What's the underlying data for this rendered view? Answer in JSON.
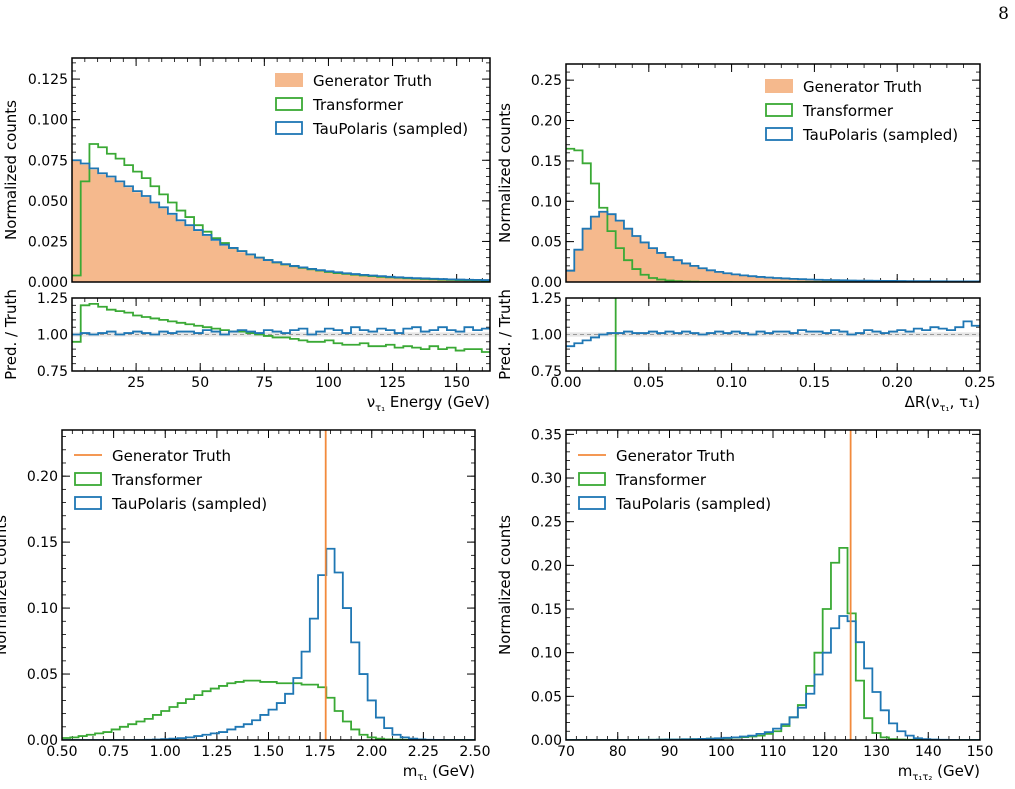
{
  "page_number": "8",
  "colors": {
    "truth_fill": "#f5b98d",
    "truth_line": "#f28a3c",
    "transformer": "#3aa935",
    "taupolaris": "#1f77b4",
    "unity": "#999999"
  },
  "chart_data": [
    {
      "id": "nu-energy",
      "type": "histogram-step",
      "title": "",
      "xlabel_main": "ν",
      "xlabel_sub": "τ₁",
      "xlabel_rest": " Energy (GeV)",
      "ylabel": "Normalized counts",
      "xlim": [
        0,
        163
      ],
      "ylim": [
        0,
        0.138
      ],
      "xticks": [
        25,
        50,
        75,
        100,
        125,
        150
      ],
      "xtick_labels": [
        "25",
        "50",
        "75",
        "100",
        "125",
        "150"
      ],
      "yticks": [
        0,
        0.025,
        0.05,
        0.075,
        0.1,
        0.125
      ],
      "ytick_labels": [
        "0.000",
        "0.025",
        "0.050",
        "0.075",
        "0.100",
        "0.125"
      ],
      "legend_position": "top-right",
      "legend": [
        "Generator Truth",
        "Transformer",
        "TauPolaris (sampled)"
      ],
      "bins": {
        "start": 0,
        "width": 3.4
      },
      "series": [
        {
          "name": "Generator Truth",
          "style": "filled",
          "values": [
            0.075,
            0.072,
            0.069,
            0.066,
            0.064,
            0.061,
            0.058,
            0.055,
            0.052,
            0.048,
            0.045,
            0.041,
            0.037,
            0.034,
            0.031,
            0.028,
            0.025,
            0.022,
            0.02,
            0.018,
            0.016,
            0.0145,
            0.013,
            0.0118,
            0.0106,
            0.0096,
            0.0087,
            0.0078,
            0.007,
            0.0063,
            0.0057,
            0.0052,
            0.0047,
            0.0042,
            0.0038,
            0.0034,
            0.0031,
            0.0028,
            0.0025,
            0.0023,
            0.0021,
            0.0019,
            0.0017,
            0.0015,
            0.0014,
            0.0013,
            0.0012,
            0.0011
          ]
        },
        {
          "name": "Transformer",
          "style": "step",
          "values": [
            0.004,
            0.062,
            0.085,
            0.083,
            0.079,
            0.076,
            0.072,
            0.068,
            0.064,
            0.059,
            0.054,
            0.049,
            0.044,
            0.04,
            0.035,
            0.031,
            0.027,
            0.024,
            0.021,
            0.019,
            0.017,
            0.015,
            0.0135,
            0.012,
            0.0108,
            0.0097,
            0.0087,
            0.0078,
            0.007,
            0.0062,
            0.0055,
            0.005,
            0.0045,
            0.004,
            0.0036,
            0.0032,
            0.0029,
            0.0026,
            0.0023,
            0.0021,
            0.0019,
            0.0017,
            0.0015,
            0.0013,
            0.0012,
            0.0011,
            0.001,
            0.0009
          ]
        },
        {
          "name": "TauPolaris (sampled)",
          "style": "step",
          "values": [
            0.075,
            0.073,
            0.07,
            0.067,
            0.065,
            0.062,
            0.059,
            0.056,
            0.053,
            0.049,
            0.046,
            0.042,
            0.038,
            0.035,
            0.032,
            0.029,
            0.026,
            0.023,
            0.021,
            0.019,
            0.017,
            0.015,
            0.0135,
            0.0122,
            0.011,
            0.0099,
            0.009,
            0.0081,
            0.0073,
            0.0066,
            0.006,
            0.0054,
            0.0049,
            0.0044,
            0.004,
            0.0036,
            0.0032,
            0.0029,
            0.0026,
            0.0024,
            0.0022,
            0.002,
            0.0018,
            0.0016,
            0.0015,
            0.0014,
            0.0013,
            0.0012
          ]
        }
      ],
      "ratio": {
        "ylabel": "Pred. / Truth",
        "ylim": [
          0.75,
          1.25
        ],
        "yticks": [
          0.75,
          1.0,
          1.25
        ],
        "ytick_labels": [
          "0.75",
          "1.00",
          "1.25"
        ],
        "series": [
          {
            "name": "Transformer",
            "values": [
              0.95,
              1.2,
              1.21,
              1.19,
              1.17,
              1.16,
              1.15,
              1.13,
              1.12,
              1.11,
              1.1,
              1.09,
              1.08,
              1.07,
              1.06,
              1.05,
              1.04,
              1.03,
              1.02,
              1.02,
              1.01,
              1.0,
              0.99,
              0.98,
              0.98,
              0.97,
              0.96,
              0.95,
              0.95,
              0.96,
              0.94,
              0.93,
              0.93,
              0.94,
              0.92,
              0.92,
              0.93,
              0.91,
              0.92,
              0.91,
              0.9,
              0.92,
              0.9,
              0.91,
              0.89,
              0.9,
              0.9,
              0.88
            ]
          },
          {
            "name": "TauPolaris (sampled)",
            "values": [
              1.0,
              1.01,
              1.0,
              1.01,
              1.02,
              1.0,
              1.01,
              1.02,
              1.01,
              1.0,
              1.02,
              1.01,
              1.02,
              1.02,
              1.01,
              1.03,
              1.02,
              1.0,
              1.02,
              1.03,
              1.02,
              1.01,
              1.03,
              1.02,
              1.01,
              1.03,
              1.04,
              1.0,
              1.02,
              1.04,
              1.03,
              1.01,
              1.05,
              1.03,
              1.02,
              1.04,
              1.03,
              1.01,
              1.04,
              1.05,
              1.02,
              1.03,
              1.05,
              1.03,
              1.02,
              1.05,
              1.03,
              1.04
            ]
          }
        ]
      }
    },
    {
      "id": "delta-r",
      "type": "histogram-step",
      "title": "",
      "xlabel_main": "ΔR(ν",
      "xlabel_sub": "τ₁",
      "xlabel_rest": ", τ₁)",
      "ylabel": "Normalized counts",
      "xlim": [
        0,
        0.25
      ],
      "ylim": [
        0,
        0.27
      ],
      "xticks": [
        0,
        0.05,
        0.1,
        0.15,
        0.2,
        0.25
      ],
      "xtick_labels": [
        "0.00",
        "0.05",
        "0.10",
        "0.15",
        "0.20",
        "0.25"
      ],
      "yticks": [
        0,
        0.05,
        0.1,
        0.15,
        0.2,
        0.25
      ],
      "ytick_labels": [
        "0.00",
        "0.05",
        "0.10",
        "0.15",
        "0.20",
        "0.25"
      ],
      "legend_position": "top-right",
      "legend": [
        "Generator Truth",
        "Transformer",
        "TauPolaris (sampled)"
      ],
      "bins": {
        "start": 0,
        "width": 0.005
      },
      "series": [
        {
          "name": "Generator Truth",
          "style": "filled",
          "values": [
            0.015,
            0.04,
            0.065,
            0.08,
            0.086,
            0.083,
            0.075,
            0.065,
            0.056,
            0.048,
            0.041,
            0.035,
            0.03,
            0.026,
            0.022,
            0.019,
            0.016,
            0.014,
            0.012,
            0.0105,
            0.0092,
            0.008,
            0.007,
            0.0062,
            0.0055,
            0.0048,
            0.0043,
            0.0038,
            0.0034,
            0.003,
            0.0027,
            0.0024,
            0.0022,
            0.002,
            0.0018,
            0.0016,
            0.0015,
            0.0014,
            0.0013,
            0.0012,
            0.0011,
            0.001,
            0.0009,
            0.0009,
            0.0008,
            0.0008,
            0.0007,
            0.0007,
            0.0006,
            0.0006
          ]
        },
        {
          "name": "Transformer",
          "style": "step",
          "values": [
            0.165,
            0.163,
            0.147,
            0.122,
            0.092,
            0.063,
            0.042,
            0.027,
            0.016,
            0.009,
            0.005,
            0.003,
            0.0018,
            0.001,
            0.0006,
            0.0004,
            0.0002,
            0.0001,
            0.0001,
            0.0001,
            0,
            0,
            0,
            0,
            0,
            0,
            0,
            0,
            0,
            0,
            0,
            0,
            0,
            0,
            0,
            0,
            0,
            0,
            0,
            0,
            0,
            0,
            0,
            0,
            0,
            0,
            0,
            0,
            0,
            0
          ]
        },
        {
          "name": "TauPolaris (sampled)",
          "style": "step",
          "values": [
            0.014,
            0.04,
            0.066,
            0.081,
            0.087,
            0.084,
            0.076,
            0.066,
            0.057,
            0.049,
            0.042,
            0.036,
            0.031,
            0.027,
            0.023,
            0.02,
            0.017,
            0.0145,
            0.0125,
            0.0108,
            0.0094,
            0.0082,
            0.0072,
            0.0063,
            0.0056,
            0.005,
            0.0044,
            0.0039,
            0.0035,
            0.0031,
            0.0028,
            0.0025,
            0.0023,
            0.0021,
            0.0019,
            0.0017,
            0.0016,
            0.0015,
            0.0014,
            0.0013,
            0.0012,
            0.0011,
            0.001,
            0.001,
            0.0009,
            0.0009,
            0.0008,
            0.0008,
            0.0007,
            0.0007
          ]
        }
      ],
      "ratio": {
        "ylabel": "Pred. / Truth",
        "ylim": [
          0.75,
          1.25
        ],
        "yticks": [
          0.75,
          1.0,
          1.25
        ],
        "ytick_labels": [
          "0.75",
          "1.00",
          "1.25"
        ],
        "series": [
          {
            "name": "Transformer",
            "values": [
              2.5,
              2.5,
              2.5,
              2.5,
              2.0,
              1.3,
              0.55,
              0.4,
              0.3,
              0.2,
              0.1,
              0.1,
              0.1,
              0.1,
              0.1,
              0.1,
              0.1,
              0.1,
              0.1,
              0.1,
              0.1,
              0.1,
              0.1,
              0.1,
              0.1,
              0.1,
              0.1,
              0.1,
              0.1,
              0.1,
              0.1,
              0.1,
              0.1,
              0.1,
              0.1,
              0.1,
              0.1,
              0.1,
              0.1,
              0.1,
              0.1,
              0.1,
              0.1,
              0.1,
              0.1,
              0.1,
              0.1,
              0.1,
              0.1,
              0.1
            ]
          },
          {
            "name": "TauPolaris (sampled)",
            "values": [
              0.92,
              0.94,
              0.96,
              0.98,
              1.0,
              1.01,
              1.01,
              1.02,
              1.01,
              1.01,
              1.02,
              1.01,
              1.02,
              1.01,
              1.02,
              1.01,
              1.0,
              1.01,
              1.02,
              1.01,
              1.02,
              1.01,
              1.0,
              1.02,
              1.01,
              1.02,
              1.02,
              1.01,
              1.03,
              1.02,
              1.02,
              1.01,
              1.03,
              1.02,
              1.0,
              1.01,
              1.03,
              1.02,
              1.01,
              1.02,
              1.03,
              1.02,
              1.04,
              1.03,
              1.05,
              1.04,
              1.03,
              1.05,
              1.09,
              1.06
            ]
          }
        ]
      }
    },
    {
      "id": "tau-mass",
      "type": "histogram-step",
      "title": "",
      "xlabel_main": "m",
      "xlabel_sub": "τ₁",
      "xlabel_rest": " (GeV)",
      "ylabel": "Normalized counts",
      "xlim": [
        0.5,
        2.5
      ],
      "ylim": [
        0,
        0.235
      ],
      "xticks": [
        0.5,
        0.75,
        1.0,
        1.25,
        1.5,
        1.75,
        2.0,
        2.25,
        2.5
      ],
      "xtick_labels": [
        "0.50",
        "0.75",
        "1.00",
        "1.25",
        "1.50",
        "1.75",
        "2.00",
        "2.25",
        "2.50"
      ],
      "yticks": [
        0,
        0.05,
        0.1,
        0.15,
        0.2
      ],
      "ytick_labels": [
        "0.00",
        "0.05",
        "0.10",
        "0.15",
        "0.20"
      ],
      "legend_position": "top-left",
      "legend": [
        "Generator Truth",
        "Transformer",
        "TauPolaris (sampled)"
      ],
      "truth_line_x": 1.777,
      "bins": {
        "start": 0.5,
        "width": 0.04
      },
      "series": [
        {
          "name": "Transformer",
          "style": "step",
          "values": [
            0.0015,
            0.002,
            0.003,
            0.004,
            0.005,
            0.006,
            0.008,
            0.01,
            0.012,
            0.014,
            0.016,
            0.019,
            0.022,
            0.025,
            0.028,
            0.031,
            0.034,
            0.037,
            0.039,
            0.041,
            0.043,
            0.044,
            0.045,
            0.045,
            0.044,
            0.044,
            0.043,
            0.043,
            0.043,
            0.042,
            0.042,
            0.04,
            0.032,
            0.022,
            0.014,
            0.008,
            0.004,
            0.002,
            0.001,
            0.0005,
            0.0003,
            0.0002,
            0.0001,
            0.0001,
            0.0001,
            0,
            0,
            0,
            0,
            0
          ]
        },
        {
          "name": "TauPolaris (sampled)",
          "style": "step",
          "values": [
            0,
            0,
            0,
            0,
            0,
            0,
            0,
            0,
            0,
            0,
            0.0002,
            0.0004,
            0.0006,
            0.001,
            0.0014,
            0.002,
            0.003,
            0.004,
            0.005,
            0.006,
            0.008,
            0.01,
            0.012,
            0.015,
            0.019,
            0.023,
            0.028,
            0.035,
            0.047,
            0.067,
            0.092,
            0.125,
            0.145,
            0.127,
            0.1,
            0.074,
            0.05,
            0.03,
            0.017,
            0.009,
            0.004,
            0.002,
            0.001,
            0.0005,
            0.0002,
            0.0001,
            0,
            0,
            0,
            0
          ]
        }
      ]
    },
    {
      "id": "ditau-mass",
      "type": "histogram-step",
      "title": "",
      "xlabel_main": "m",
      "xlabel_sub": "τ₁τ₂",
      "xlabel_rest": " (GeV)",
      "ylabel": "Normalized counts",
      "xlim": [
        70,
        150
      ],
      "ylim": [
        0,
        0.355
      ],
      "xticks": [
        70,
        80,
        90,
        100,
        110,
        120,
        130,
        140,
        150
      ],
      "xtick_labels": [
        "70",
        "80",
        "90",
        "100",
        "110",
        "120",
        "130",
        "140",
        "150"
      ],
      "yticks": [
        0,
        0.05,
        0.1,
        0.15,
        0.2,
        0.25,
        0.3,
        0.35
      ],
      "ytick_labels": [
        "0.00",
        "0.05",
        "0.10",
        "0.15",
        "0.20",
        "0.25",
        "0.30",
        "0.35"
      ],
      "legend_position": "top-left",
      "legend": [
        "Generator Truth",
        "Transformer",
        "TauPolaris (sampled)"
      ],
      "truth_line_x": 125,
      "bins": {
        "start": 70,
        "width": 1.6
      },
      "series": [
        {
          "name": "Transformer",
          "style": "step",
          "values": [
            0,
            0,
            0,
            0,
            0,
            0,
            0,
            0,
            0,
            0.0002,
            0.0003,
            0.0004,
            0.0005,
            0.0006,
            0.0008,
            0.001,
            0.0012,
            0.0015,
            0.0018,
            0.0022,
            0.0027,
            0.0033,
            0.004,
            0.005,
            0.007,
            0.01,
            0.016,
            0.026,
            0.04,
            0.062,
            0.1,
            0.15,
            0.203,
            0.22,
            0.145,
            0.068,
            0.025,
            0.008,
            0.003,
            0.001,
            0.0005,
            0.0002,
            0.0001,
            0,
            0,
            0,
            0,
            0,
            0,
            0
          ]
        },
        {
          "name": "TauPolaris (sampled)",
          "style": "step",
          "values": [
            0,
            0,
            0,
            0,
            0,
            0,
            0,
            0,
            0,
            0.0002,
            0.0003,
            0.0004,
            0.0005,
            0.0006,
            0.0008,
            0.001,
            0.0013,
            0.0016,
            0.002,
            0.0025,
            0.003,
            0.004,
            0.005,
            0.007,
            0.009,
            0.013,
            0.018,
            0.026,
            0.037,
            0.053,
            0.075,
            0.1,
            0.128,
            0.142,
            0.136,
            0.112,
            0.082,
            0.055,
            0.034,
            0.019,
            0.01,
            0.005,
            0.002,
            0.001,
            0.0005,
            0.0002,
            0.0001,
            0,
            0,
            0
          ]
        }
      ]
    }
  ]
}
